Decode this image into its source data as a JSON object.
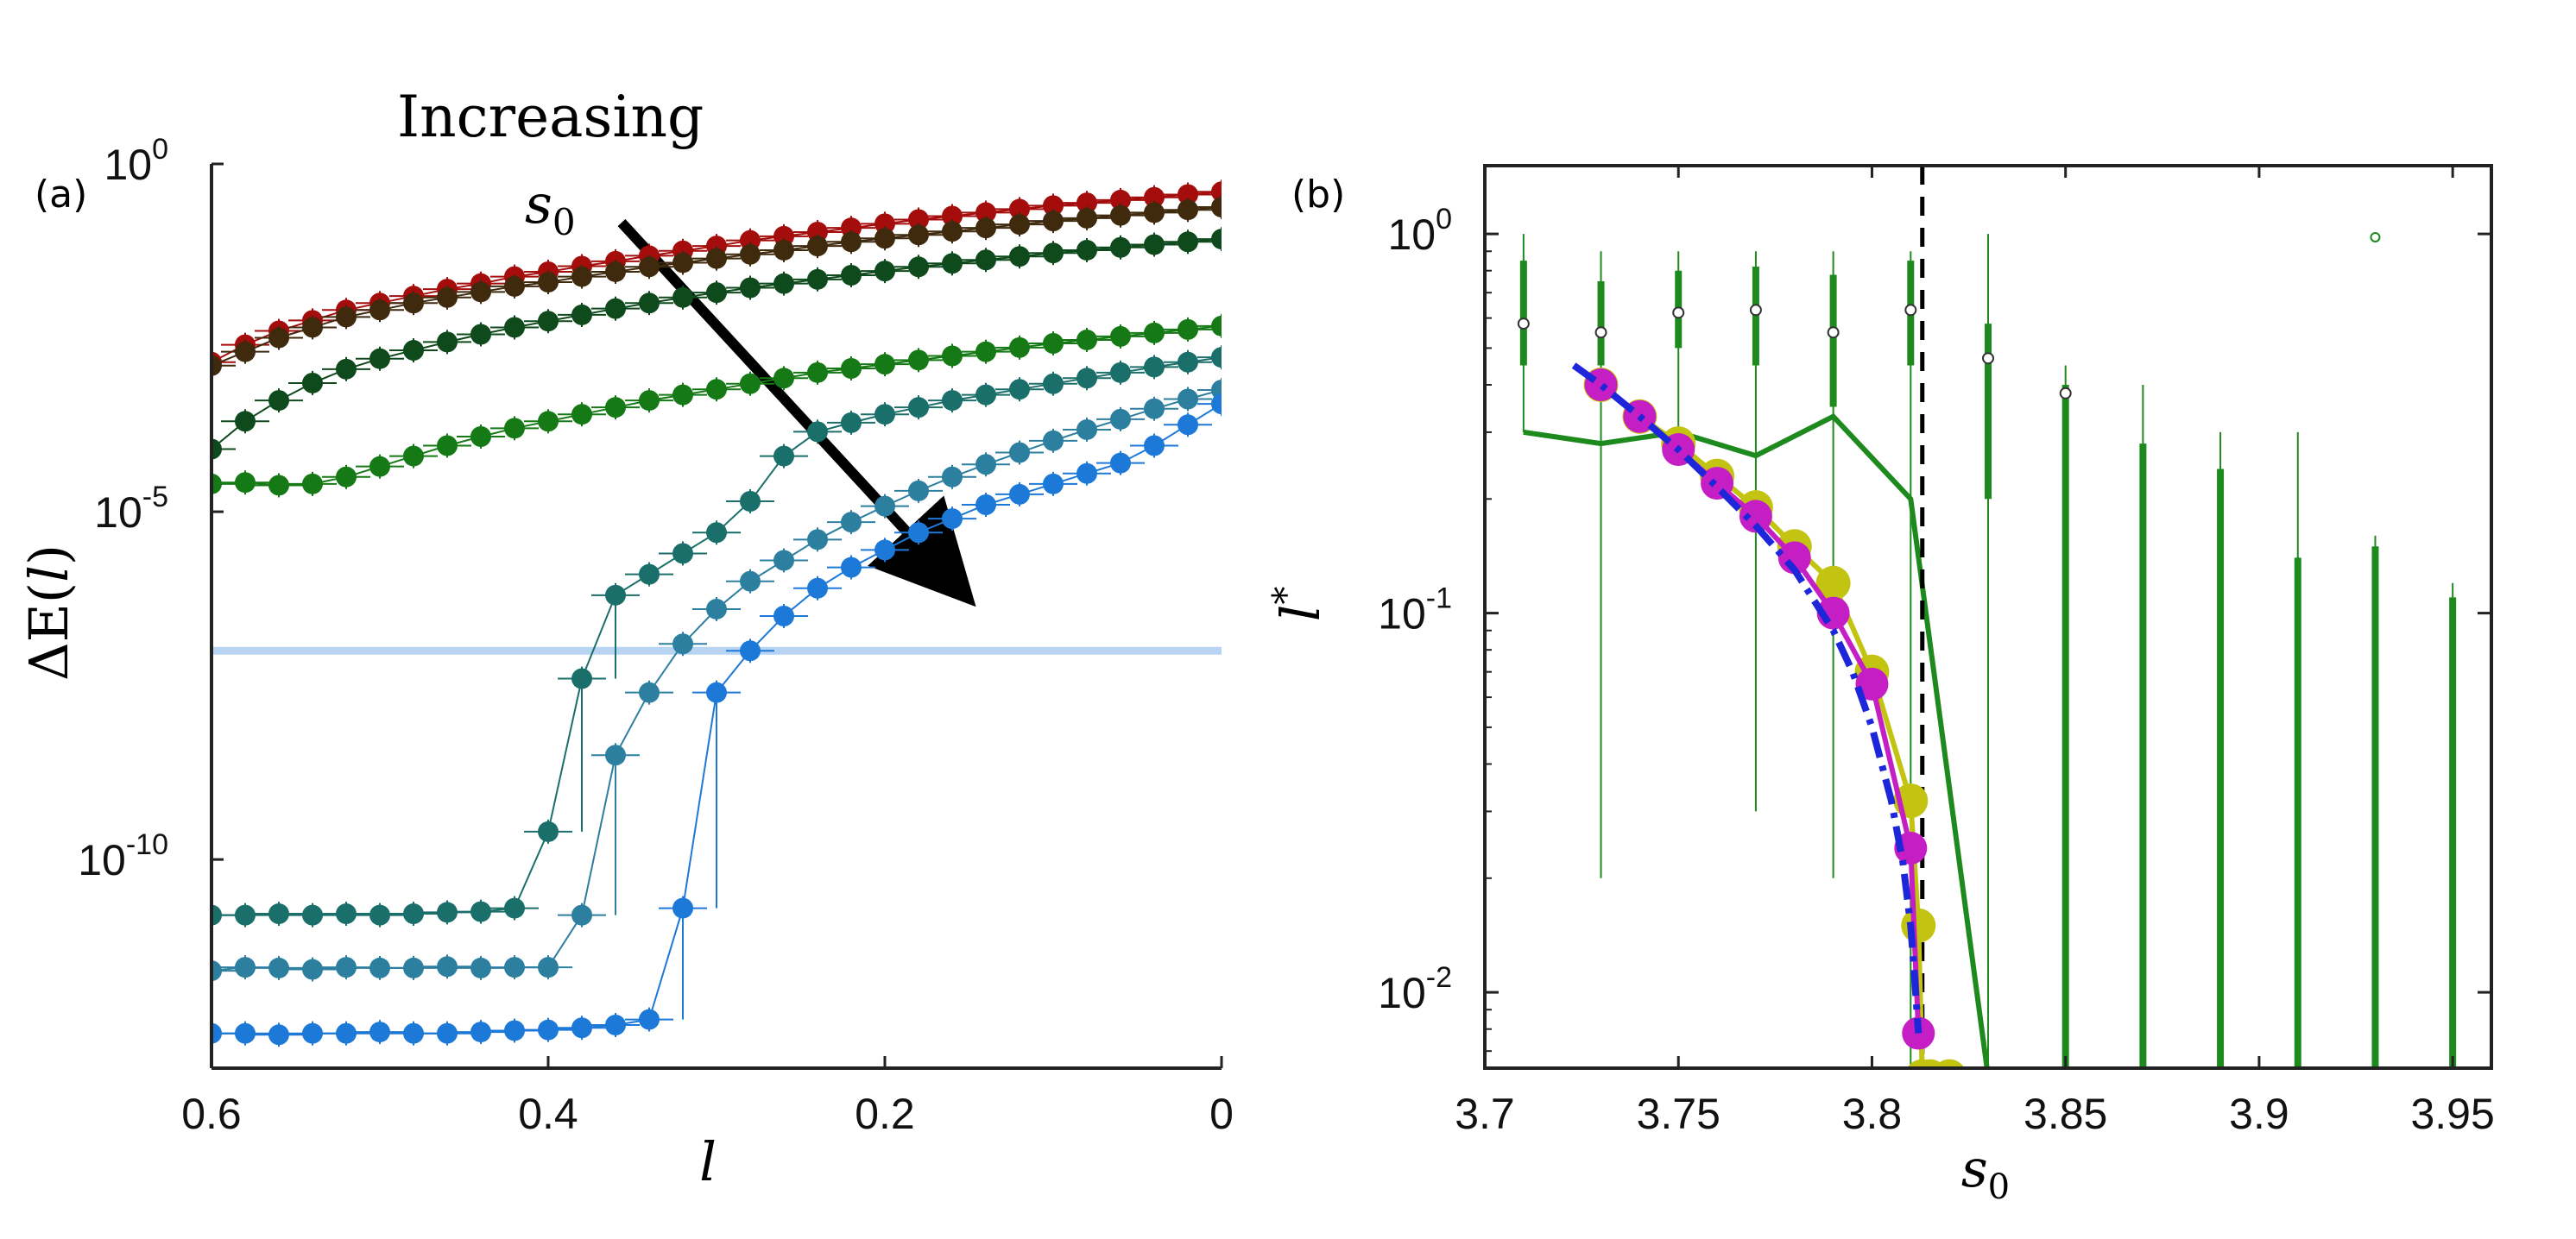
{
  "chart_data": [
    {
      "type": "scatter",
      "panel": "(a)",
      "title": "",
      "annotation": {
        "increasing_text": "Increasing",
        "increasing_var": "s",
        "increasing_sub": "0"
      },
      "xlabel": "l",
      "ylabel_prefix": "ΔE(",
      "ylabel_var": "l",
      "ylabel_suffix": ")",
      "xlim": [
        0.6,
        0
      ],
      "ylim_log10": [
        -13,
        0
      ],
      "x_ticks": [
        {
          "value": 0.6,
          "label": "0.6"
        },
        {
          "value": 0.4,
          "label": "0.4"
        },
        {
          "value": 0.2,
          "label": "0.2"
        },
        {
          "value": 0,
          "label": "0"
        }
      ],
      "y_ticks": [
        {
          "exp": 0,
          "base": "10",
          "sup": "0"
        },
        {
          "exp": -5,
          "base": "10",
          "sup": "-5"
        },
        {
          "exp": -10,
          "base": "10",
          "sup": "-10"
        }
      ],
      "threshold_log10": -7,
      "threshold_color": "#b8d4f2",
      "series": [
        {
          "name": "s0_1",
          "color": "#a50d0d",
          "x": [
            0.6,
            0.58,
            0.56,
            0.54,
            0.52,
            0.5,
            0.48,
            0.46,
            0.44,
            0.42,
            0.4,
            0.38,
            0.36,
            0.34,
            0.32,
            0.3,
            0.28,
            0.26,
            0.24,
            0.22,
            0.2,
            0.18,
            0.16,
            0.14,
            0.12,
            0.1,
            0.08,
            0.06,
            0.04,
            0.02,
            0.0
          ],
          "log10y": [
            -2.85,
            -2.6,
            -2.4,
            -2.25,
            -2.1,
            -2.0,
            -1.9,
            -1.8,
            -1.72,
            -1.62,
            -1.55,
            -1.47,
            -1.4,
            -1.32,
            -1.25,
            -1.18,
            -1.1,
            -1.04,
            -0.98,
            -0.92,
            -0.86,
            -0.8,
            -0.75,
            -0.7,
            -0.65,
            -0.6,
            -0.56,
            -0.52,
            -0.48,
            -0.44,
            -0.4
          ]
        },
        {
          "name": "s0_2",
          "color": "#3f2a0e",
          "x": [
            0.6,
            0.58,
            0.56,
            0.54,
            0.52,
            0.5,
            0.48,
            0.46,
            0.44,
            0.42,
            0.4,
            0.38,
            0.36,
            0.34,
            0.32,
            0.3,
            0.28,
            0.26,
            0.24,
            0.22,
            0.2,
            0.18,
            0.16,
            0.14,
            0.12,
            0.1,
            0.08,
            0.06,
            0.04,
            0.02,
            0.0
          ],
          "log10y": [
            -2.9,
            -2.7,
            -2.5,
            -2.35,
            -2.2,
            -2.1,
            -2.0,
            -1.92,
            -1.84,
            -1.76,
            -1.7,
            -1.62,
            -1.55,
            -1.48,
            -1.42,
            -1.36,
            -1.3,
            -1.24,
            -1.18,
            -1.12,
            -1.07,
            -1.02,
            -0.97,
            -0.92,
            -0.87,
            -0.82,
            -0.78,
            -0.74,
            -0.7,
            -0.66,
            -0.62
          ]
        },
        {
          "name": "s0_3",
          "color": "#0f4a1c",
          "x": [
            0.6,
            0.58,
            0.56,
            0.54,
            0.52,
            0.5,
            0.48,
            0.46,
            0.44,
            0.42,
            0.4,
            0.38,
            0.36,
            0.34,
            0.32,
            0.3,
            0.28,
            0.26,
            0.24,
            0.22,
            0.2,
            0.18,
            0.16,
            0.14,
            0.12,
            0.1,
            0.08,
            0.06,
            0.04,
            0.02,
            0.0
          ],
          "log10y": [
            -4.1,
            -3.7,
            -3.4,
            -3.15,
            -2.95,
            -2.8,
            -2.68,
            -2.56,
            -2.45,
            -2.35,
            -2.26,
            -2.17,
            -2.08,
            -2.0,
            -1.92,
            -1.85,
            -1.78,
            -1.72,
            -1.66,
            -1.6,
            -1.54,
            -1.48,
            -1.43,
            -1.38,
            -1.33,
            -1.28,
            -1.24,
            -1.2,
            -1.16,
            -1.12,
            -1.08
          ]
        },
        {
          "name": "s0_4",
          "color": "#157a15",
          "x": [
            0.6,
            0.58,
            0.56,
            0.54,
            0.52,
            0.5,
            0.48,
            0.46,
            0.44,
            0.42,
            0.4,
            0.38,
            0.36,
            0.34,
            0.32,
            0.3,
            0.28,
            0.26,
            0.24,
            0.22,
            0.2,
            0.18,
            0.16,
            0.14,
            0.12,
            0.1,
            0.08,
            0.06,
            0.04,
            0.02,
            0.0
          ],
          "log10y": [
            -4.6,
            -4.58,
            -4.62,
            -4.6,
            -4.5,
            -4.35,
            -4.2,
            -4.05,
            -3.92,
            -3.8,
            -3.7,
            -3.6,
            -3.5,
            -3.4,
            -3.32,
            -3.24,
            -3.16,
            -3.08,
            -3.0,
            -2.94,
            -2.88,
            -2.82,
            -2.76,
            -2.7,
            -2.64,
            -2.58,
            -2.53,
            -2.48,
            -2.43,
            -2.38,
            -2.33
          ]
        },
        {
          "name": "s0_5",
          "color": "#1b6f6a",
          "x": [
            0.6,
            0.58,
            0.56,
            0.54,
            0.52,
            0.5,
            0.48,
            0.46,
            0.44,
            0.42,
            0.4,
            0.38,
            0.36,
            0.34,
            0.32,
            0.3,
            0.28,
            0.26,
            0.24,
            0.22,
            0.2,
            0.18,
            0.16,
            0.14,
            0.12,
            0.1,
            0.08,
            0.06,
            0.04,
            0.02,
            0.0
          ],
          "log10y": [
            -10.8,
            -10.8,
            -10.78,
            -10.8,
            -10.78,
            -10.8,
            -10.78,
            -10.76,
            -10.75,
            -10.7,
            -9.6,
            -7.4,
            -6.2,
            -5.9,
            -5.6,
            -5.3,
            -4.85,
            -4.2,
            -3.85,
            -3.72,
            -3.6,
            -3.5,
            -3.4,
            -3.32,
            -3.24,
            -3.16,
            -3.08,
            -3.0,
            -2.92,
            -2.85,
            -2.78
          ]
        },
        {
          "name": "s0_6",
          "color": "#2d7fa0",
          "x": [
            0.6,
            0.58,
            0.56,
            0.54,
            0.52,
            0.5,
            0.48,
            0.46,
            0.44,
            0.42,
            0.4,
            0.38,
            0.36,
            0.34,
            0.32,
            0.3,
            0.28,
            0.26,
            0.24,
            0.22,
            0.2,
            0.18,
            0.16,
            0.14,
            0.12,
            0.1,
            0.08,
            0.06,
            0.04,
            0.02,
            0.0
          ],
          "log10y": [
            -11.6,
            -11.55,
            -11.56,
            -11.58,
            -11.55,
            -11.56,
            -11.56,
            -11.54,
            -11.56,
            -11.55,
            -11.55,
            -10.8,
            -8.5,
            -7.6,
            -6.9,
            -6.4,
            -6.0,
            -5.7,
            -5.4,
            -5.15,
            -4.92,
            -4.7,
            -4.5,
            -4.32,
            -4.15,
            -3.98,
            -3.82,
            -3.67,
            -3.52,
            -3.38,
            -3.25
          ]
        },
        {
          "name": "s0_7",
          "color": "#1d79d8",
          "x": [
            0.6,
            0.58,
            0.56,
            0.54,
            0.52,
            0.5,
            0.48,
            0.46,
            0.44,
            0.42,
            0.4,
            0.38,
            0.36,
            0.34,
            0.32,
            0.3,
            0.28,
            0.26,
            0.24,
            0.22,
            0.2,
            0.18,
            0.16,
            0.14,
            0.12,
            0.1,
            0.08,
            0.06,
            0.04,
            0.02,
            0.0
          ],
          "log10y": [
            -12.5,
            -12.5,
            -12.52,
            -12.5,
            -12.5,
            -12.48,
            -12.5,
            -12.5,
            -12.48,
            -12.46,
            -12.45,
            -12.42,
            -12.38,
            -12.3,
            -10.7,
            -7.6,
            -7.0,
            -6.5,
            -6.1,
            -5.8,
            -5.55,
            -5.3,
            -5.1,
            -4.9,
            -4.75,
            -4.6,
            -4.45,
            -4.3,
            -4.05,
            -3.75,
            -3.45
          ]
        }
      ]
    },
    {
      "type": "line",
      "panel": "(b)",
      "title": "",
      "xlabel_var": "s",
      "xlabel_sub": "0",
      "ylabel_var": "l",
      "ylabel_sup": "*",
      "xlim": [
        3.7,
        3.96
      ],
      "ylim_log10": [
        -2.2,
        0.18
      ],
      "x_ticks": [
        {
          "value": 3.7,
          "label": "3.7"
        },
        {
          "value": 3.75,
          "label": "3.75"
        },
        {
          "value": 3.8,
          "label": "3.8"
        },
        {
          "value": 3.85,
          "label": "3.85"
        },
        {
          "value": 3.9,
          "label": "3.9"
        },
        {
          "value": 3.95,
          "label": "3.95"
        }
      ],
      "y_ticks": [
        {
          "exp": 0,
          "base": "10",
          "sup": "0"
        },
        {
          "exp": -1,
          "base": "10",
          "sup": "-1"
        },
        {
          "exp": -2,
          "base": "10",
          "sup": "-2"
        }
      ],
      "vline_x": 3.813,
      "green_line": {
        "color": "#1e8a1e",
        "s0": [
          3.71,
          3.73,
          3.75,
          3.77,
          3.79,
          3.81,
          3.83,
          3.85,
          3.87,
          3.89,
          3.91,
          3.93,
          3.95
        ],
        "l": [
          0.3,
          0.28,
          0.3,
          0.26,
          0.33,
          0.2,
          0.006,
          0.006,
          0.006,
          0.006,
          0.006,
          0.006,
          0.006
        ]
      },
      "boxes": {
        "color": "#1e8a1e",
        "items": [
          {
            "s0": 3.71,
            "median": 0.58,
            "q1": 0.45,
            "q3": 0.85,
            "whisker_low": 0.3,
            "whisker_high": 1.0
          },
          {
            "s0": 3.73,
            "median": 0.55,
            "q1": 0.45,
            "q3": 0.75,
            "whisker_low": 0.02,
            "whisker_high": 0.9
          },
          {
            "s0": 3.75,
            "median": 0.62,
            "q1": 0.5,
            "q3": 0.8,
            "whisker_low": 0.3,
            "whisker_high": 0.9
          },
          {
            "s0": 3.77,
            "median": 0.63,
            "q1": 0.45,
            "q3": 0.82,
            "whisker_low": 0.03,
            "whisker_high": 0.9
          },
          {
            "s0": 3.79,
            "median": 0.55,
            "q1": 0.35,
            "q3": 0.78,
            "whisker_low": 0.02,
            "whisker_high": 0.9
          },
          {
            "s0": 3.81,
            "median": 0.63,
            "q1": 0.45,
            "q3": 0.85,
            "whisker_low": 0.006,
            "whisker_high": 0.9
          },
          {
            "s0": 3.83,
            "median": 0.47,
            "q1": 0.2,
            "q3": 0.58,
            "whisker_low": 0.006,
            "whisker_high": 1.0
          },
          {
            "s0": 3.85,
            "median": 0.38,
            "q1": 0.006,
            "q3": 0.4,
            "whisker_low": 0.006,
            "whisker_high": 0.45
          },
          {
            "s0": 3.87,
            "median": 0.006,
            "q1": 0.006,
            "q3": 0.28,
            "whisker_low": 0.006,
            "whisker_high": 0.4
          },
          {
            "s0": 3.89,
            "median": 0.006,
            "q1": 0.006,
            "q3": 0.24,
            "whisker_low": 0.006,
            "whisker_high": 0.3
          },
          {
            "s0": 3.91,
            "median": 0.006,
            "q1": 0.006,
            "q3": 0.14,
            "whisker_low": 0.006,
            "whisker_high": 0.3
          },
          {
            "s0": 3.93,
            "median": 0.006,
            "q1": 0.006,
            "q3": 0.15,
            "whisker_low": 0.006,
            "whisker_high": 0.16
          },
          {
            "s0": 3.95,
            "median": 0.006,
            "q1": 0.006,
            "q3": 0.11,
            "whisker_low": 0.006,
            "whisker_high": 0.12
          }
        ],
        "outliers": [
          {
            "s0": 3.93,
            "l": 0.98
          }
        ]
      },
      "series": [
        {
          "name": "yellow",
          "color": "#c3c412",
          "s0": [
            3.73,
            3.74,
            3.75,
            3.76,
            3.77,
            3.78,
            3.79,
            3.8,
            3.81,
            3.812,
            3.813,
            3.815,
            3.82
          ],
          "l": [
            0.4,
            0.33,
            0.28,
            0.23,
            0.19,
            0.15,
            0.12,
            0.07,
            0.032,
            0.015,
            0.006,
            0.006,
            0.006
          ]
        },
        {
          "name": "magenta",
          "color": "#c41ec4",
          "s0": [
            3.73,
            3.74,
            3.75,
            3.76,
            3.77,
            3.78,
            3.79,
            3.8,
            3.81,
            3.812
          ],
          "l": [
            0.4,
            0.33,
            0.27,
            0.22,
            0.18,
            0.14,
            0.1,
            0.065,
            0.024,
            0.0078
          ]
        },
        {
          "name": "fit",
          "color": "#1d26d9",
          "s0": [
            3.723,
            3.73,
            3.74,
            3.75,
            3.76,
            3.77,
            3.78,
            3.79,
            3.795,
            3.8,
            3.805,
            3.808,
            3.81,
            3.811,
            3.812
          ],
          "l": [
            0.45,
            0.4,
            0.33,
            0.27,
            0.215,
            0.17,
            0.13,
            0.09,
            0.07,
            0.05,
            0.032,
            0.022,
            0.015,
            0.011,
            0.0078
          ]
        }
      ]
    }
  ],
  "panel_labels": {
    "a": "(a)",
    "b": "(b)"
  }
}
